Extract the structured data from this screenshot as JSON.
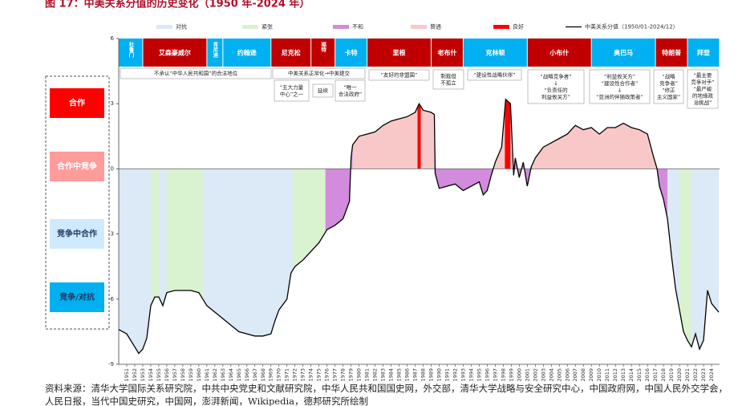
{
  "chart_data": {
    "type": "line",
    "title": "图 17：中美关系分值的历史变化（1950 年-2024 年）",
    "xlim": [
      1950,
      2025
    ],
    "ylim": [
      -9,
      6
    ],
    "yticks": [
      -9,
      -6,
      -3,
      0,
      3,
      6
    ],
    "xticks": [
      1951,
      1952,
      1953,
      1954,
      1955,
      1956,
      1957,
      1958,
      1959,
      1960,
      1961,
      1962,
      1963,
      1964,
      1965,
      1966,
      1967,
      1968,
      1969,
      1970,
      1971,
      1972,
      1973,
      1974,
      1975,
      1976,
      1977,
      1978,
      1979,
      1980,
      1981,
      1982,
      1983,
      1984,
      1985,
      1986,
      1987,
      1988,
      1989,
      1990,
      1991,
      1992,
      1993,
      1994,
      1995,
      1996,
      1997,
      1998,
      1999,
      2000,
      2001,
      2002,
      2003,
      2004,
      2005,
      2006,
      2007,
      2008,
      2009,
      2010,
      2011,
      2012,
      2013,
      2014,
      2015,
      2016,
      2017,
      2018,
      2019,
      2020,
      2021,
      2022,
      2023,
      2024
    ],
    "states": [
      {
        "name": "对抗",
        "color": "#dce9f6",
        "periods": [
          [
            1950,
            1954
          ],
          [
            1955,
            1956
          ],
          [
            1960.5,
            1971.8
          ],
          [
            2018.5,
            2020
          ],
          [
            2021.5,
            2025
          ]
        ]
      },
      {
        "name": "紧张",
        "color": "#d9f2cf",
        "periods": [
          [
            1954,
            1955
          ],
          [
            1956,
            1960.5
          ],
          [
            1971.8,
            1975.8
          ],
          [
            2020,
            2021.5
          ]
        ]
      },
      {
        "name": "不和",
        "color": "#d38bdd",
        "periods": [
          [
            1975.8,
            1979.2
          ],
          [
            1989.45,
            1996.8
          ],
          [
            1999.2,
            2001.6
          ],
          [
            2017.2,
            2018.5
          ]
        ]
      },
      {
        "name": "普通",
        "color": "#f8c8c8",
        "periods": [
          [
            1979.2,
            1987.3
          ],
          [
            1987.7,
            1989.45
          ],
          [
            1996.8,
            1998.2
          ],
          [
            1998.9,
            1999.2
          ],
          [
            2001.6,
            2017.2
          ]
        ]
      },
      {
        "name": "良好",
        "color": "#ff0000",
        "periods": [
          [
            1987.3,
            1987.7
          ],
          [
            1998.2,
            1998.9
          ]
        ]
      }
    ],
    "series": [
      {
        "name": "中美关系分值（1950/01-2024/12）",
        "color": "#000000",
        "x": [
          1950,
          1951,
          1952.5,
          1953,
          1953.5,
          1954,
          1954.5,
          1955,
          1955.5,
          1956,
          1957,
          1958,
          1959,
          1960,
          1960.5,
          1961,
          1962,
          1963,
          1964,
          1965,
          1966,
          1967,
          1968,
          1969,
          1969.5,
          1970,
          1971,
          1971.5,
          1972,
          1973,
          1974,
          1975,
          1976,
          1977,
          1978,
          1978.8,
          1979,
          1979.2,
          1980,
          1981,
          1982,
          1983,
          1984,
          1985,
          1986,
          1987,
          1987.5,
          1988,
          1989,
          1989.4,
          1989.5,
          1990,
          1991,
          1992,
          1993,
          1994,
          1995,
          1995.5,
          1996,
          1996.5,
          1997,
          1997.8,
          1998.3,
          1998.9,
          1999.3,
          1999.5,
          2000,
          2000.5,
          2001,
          2001.5,
          2002,
          2003,
          2004,
          2005,
          2006,
          2007,
          2008,
          2009,
          2010,
          2011,
          2012,
          2013,
          2014,
          2015,
          2016,
          2016.8,
          2017.2,
          2017.5,
          2018,
          2018.5,
          2019,
          2019.5,
          2020,
          2020.5,
          2021,
          2021.5,
          2022,
          2022.5,
          2023,
          2023.5,
          2024,
          2024.9
        ],
        "values": [
          -7.4,
          -7.6,
          -8.5,
          -8.3,
          -7.8,
          -6.3,
          -5.9,
          -5.9,
          -6.3,
          -5.7,
          -5.6,
          -5.6,
          -5.6,
          -5.7,
          -6.0,
          -6.3,
          -6.6,
          -6.9,
          -7.2,
          -7.5,
          -7.6,
          -7.7,
          -7.7,
          -7.6,
          -7.0,
          -6.5,
          -6.0,
          -4.8,
          -4.5,
          -4.2,
          -3.8,
          -3.4,
          -2.8,
          -2.6,
          -2.3,
          -1.5,
          0.5,
          1.1,
          1.5,
          1.6,
          1.7,
          2.0,
          2.2,
          2.3,
          2.4,
          2.6,
          3.0,
          2.7,
          2.6,
          2.5,
          -0.2,
          -0.9,
          -0.8,
          -0.7,
          -1.0,
          -0.8,
          -0.6,
          -1.2,
          -1.0,
          -0.3,
          0.3,
          1.0,
          3.2,
          3.0,
          -0.3,
          0.5,
          -0.4,
          0.3,
          -0.8,
          0.1,
          0.5,
          1.0,
          1.2,
          1.4,
          1.6,
          2.0,
          1.8,
          1.9,
          1.6,
          1.9,
          1.9,
          2.1,
          1.9,
          1.8,
          1.6,
          0.5,
          0,
          -0.8,
          -1.4,
          -2.3,
          -4.0,
          -5.5,
          -6.5,
          -7.5,
          -7.9,
          -8.2,
          -7.6,
          -8.3,
          -7.9,
          -5.6,
          -6.2,
          -6.6
        ]
      }
    ],
    "presidents": [
      {
        "name": "杜鲁门",
        "start": 1950,
        "end": 1953,
        "color": "#00b0f0"
      },
      {
        "name": "艾森豪威尔",
        "start": 1953,
        "end": 1961,
        "color": "#c00000"
      },
      {
        "name": "肯尼迪",
        "start": 1961,
        "end": 1963,
        "color": "#00b0f0"
      },
      {
        "name": "约翰逊",
        "start": 1963,
        "end": 1969,
        "color": "#00b0f0"
      },
      {
        "name": "尼克松",
        "start": 1969,
        "end": 1974,
        "color": "#c00000"
      },
      {
        "name": "福特",
        "start": 1974,
        "end": 1977,
        "color": "#c00000"
      },
      {
        "name": "卡特",
        "start": 1977,
        "end": 1981,
        "color": "#00b0f0"
      },
      {
        "name": "里根",
        "start": 1981,
        "end": 1989,
        "color": "#c00000"
      },
      {
        "name": "老布什",
        "start": 1989,
        "end": 1993,
        "color": "#c00000"
      },
      {
        "name": "克林顿",
        "start": 1993,
        "end": 2001,
        "color": "#00b0f0"
      },
      {
        "name": "小布什",
        "start": 2001,
        "end": 2009,
        "color": "#c00000"
      },
      {
        "name": "奥巴马",
        "start": 2009,
        "end": 2017,
        "color": "#00b0f0"
      },
      {
        "name": "特朗普",
        "start": 2017,
        "end": 2021,
        "color": "#c00000"
      },
      {
        "name": "拜登",
        "start": 2021,
        "end": 2025,
        "color": "#00b0f0"
      }
    ],
    "annotations": [
      {
        "lines": [
          "不承认“中华人民共和国”的合法地位"
        ]
      },
      {
        "lines": [
          "中美关系正常化→中美建交"
        ]
      },
      {
        "lines": [
          "“五大力量",
          "中心”之一"
        ]
      },
      {
        "lines": [
          "延续"
        ]
      },
      {
        "lines": [
          "“唯一",
          "合法政府”"
        ]
      },
      {
        "lines": [
          "“友好的非盟国”"
        ]
      },
      {
        "lines": [
          "制裁但",
          "不孤立"
        ]
      },
      {
        "lines": [
          "“建设性战略伙伴”"
        ]
      },
      {
        "lines": [
          "“战略竞争者”",
          "↓",
          "“负责任的",
          "利益攸关方”"
        ]
      },
      {
        "lines": [
          "“利益攸关方”",
          "“建设性合作者”",
          "↓",
          "“亚洲的伴随政策者”"
        ]
      },
      {
        "lines": [
          "“战略",
          "竞争者”",
          "“修正",
          "主义国家”"
        ]
      },
      {
        "lines": [
          "“最主要",
          "竞争对手”",
          "“最严峻",
          "的地缘政",
          "治挑战”"
        ]
      }
    ],
    "side_labels": [
      {
        "text": "合作",
        "color": "#ff0000"
      },
      {
        "text": "合作中竞争",
        "color": "#ff9b9b"
      },
      {
        "text": "竞争中合作",
        "color": "#cfeaff"
      },
      {
        "text": "竞争/对抗",
        "color": "#00b0f0"
      }
    ],
    "source": "资料来源：清华大学国际关系研究院，中共中央党史和文献研究院，中华人民共和国国史网，外交部，清华大学战略与安全研究中心，中国政府网，中国人民外交学会，人民日报，当代中国史研究，中国网，澎湃新闻，Wikipedia，德邦研究所绘制"
  }
}
